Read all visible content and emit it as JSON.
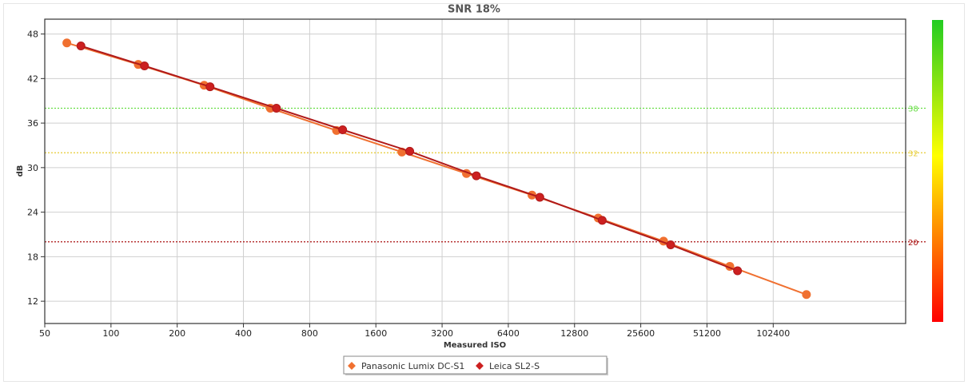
{
  "chart_data": {
    "type": "line",
    "title": "SNR 18%",
    "xlabel": "Measured ISO",
    "ylabel": "dB",
    "x_scale": "log2",
    "xlim": [
      50,
      409600
    ],
    "ylim": [
      9,
      50
    ],
    "x_ticks": [
      50,
      100,
      200,
      400,
      800,
      1600,
      3200,
      6400,
      12800,
      25600,
      51200,
      102400
    ],
    "x_tick_labels": [
      "50",
      "100",
      "200",
      "400",
      "800",
      "1600",
      "3200",
      "6400",
      "12800",
      "25600",
      "51200",
      "102400"
    ],
    "y_ticks": [
      12,
      18,
      24,
      30,
      36,
      42,
      48
    ],
    "y_tick_labels": [
      "12",
      "18",
      "24",
      "30",
      "36",
      "42",
      "48"
    ],
    "grid": true,
    "legend_position": "bottom-center",
    "reference_lines": [
      {
        "value": 38,
        "label": "38",
        "color": "#66dd44",
        "style": "dotted"
      },
      {
        "value": 32,
        "label": "32",
        "color": "#e6cc33",
        "style": "dotted"
      },
      {
        "value": 20,
        "label": "20",
        "color": "#aa1111",
        "style": "dotted"
      }
    ],
    "color_scale": {
      "top_color": "#22cc22",
      "mid_color": "#ffff00",
      "bottom_color": "#ff0000"
    },
    "series": [
      {
        "name": "Panasonic Lumix DC-S1",
        "color": "#f07030",
        "marker_color": "#f07030",
        "x": [
          63,
          133,
          265,
          530,
          1060,
          2100,
          4130,
          8200,
          16400,
          32500,
          65000,
          145000
        ],
        "y": [
          46.8,
          43.9,
          41.1,
          38.0,
          35.0,
          32.1,
          29.2,
          26.3,
          23.2,
          20.1,
          16.7,
          12.9
        ]
      },
      {
        "name": "Leica SL2-S",
        "color": "#b01a1a",
        "marker_color": "#cc2020",
        "x": [
          73,
          142,
          282,
          565,
          1130,
          2280,
          4580,
          8900,
          17100,
          35000,
          70500
        ],
        "y": [
          46.4,
          43.7,
          40.9,
          38.0,
          35.1,
          32.2,
          28.9,
          26.0,
          22.9,
          19.6,
          16.1
        ]
      }
    ]
  }
}
